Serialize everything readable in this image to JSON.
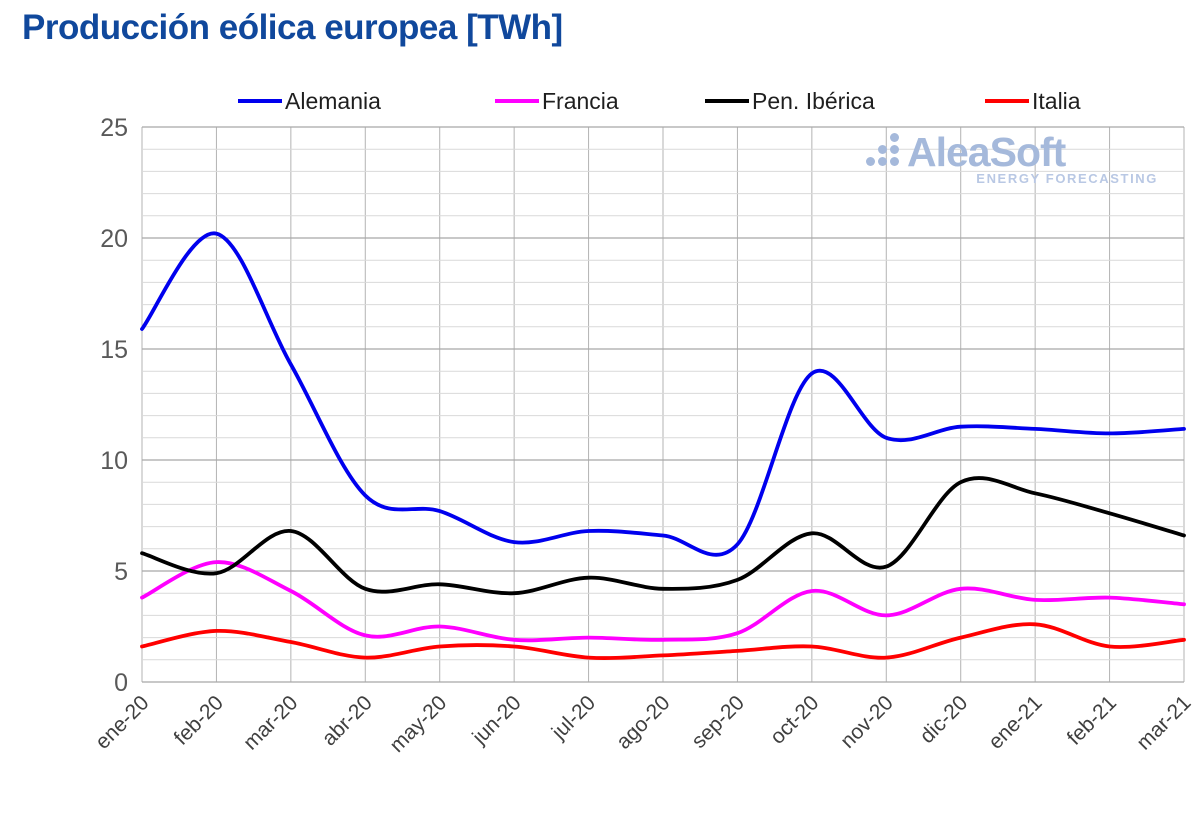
{
  "title": "Producción eólica europea [TWh]",
  "watermark": {
    "brand": "AleaSoft",
    "tagline": "ENERGY FORECASTING",
    "brand_color": "#a5b9db",
    "tagline_color": "#b9c8e4"
  },
  "chart_data": {
    "type": "line",
    "title": "Producción eólica europea [TWh]",
    "unit": "TWh",
    "x_categories": [
      "ene-20",
      "feb-20",
      "mar-20",
      "abr-20",
      "may-20",
      "jun-20",
      "jul-20",
      "ago-20",
      "sep-20",
      "oct-20",
      "nov-20",
      "dic-20",
      "ene-21",
      "feb-21",
      "mar-21"
    ],
    "series": [
      {
        "name": "Alemania",
        "color": "#0000ee",
        "values": [
          15.9,
          20.2,
          14.3,
          8.4,
          7.7,
          6.3,
          6.8,
          6.6,
          6.2,
          13.9,
          11.0,
          11.5,
          11.4,
          11.2,
          11.4
        ]
      },
      {
        "name": "Francia",
        "color": "#ff00ff",
        "values": [
          3.8,
          5.4,
          4.1,
          2.1,
          2.5,
          1.9,
          2.0,
          1.9,
          2.2,
          4.1,
          3.0,
          4.2,
          3.7,
          3.8,
          3.5
        ]
      },
      {
        "name": "Pen. Ibérica",
        "color": "#000000",
        "values": [
          5.8,
          4.9,
          6.8,
          4.2,
          4.4,
          4.0,
          4.7,
          4.2,
          4.6,
          6.7,
          5.2,
          9.0,
          8.5,
          7.6,
          6.6
        ]
      },
      {
        "name": "Italia",
        "color": "#ff0000",
        "values": [
          1.6,
          2.3,
          1.8,
          1.1,
          1.6,
          1.6,
          1.1,
          1.2,
          1.4,
          1.6,
          1.1,
          2.0,
          2.6,
          1.6,
          1.9
        ]
      }
    ],
    "ylim": [
      0,
      25
    ],
    "y_ticks": [
      0,
      5,
      10,
      15,
      20,
      25
    ],
    "y_minor_step": 1,
    "grid": true,
    "legend_position": "top",
    "xlabel": "",
    "ylabel": ""
  },
  "colors": {
    "title": "#10489c",
    "y_tick_labels": "#595959",
    "x_tick_labels": "#3f3f3f",
    "grid_minor": "#d9d9d9",
    "grid_major": "#a8a8a8",
    "grid_vertical": "#b3b3b3",
    "legend_text": "#1f1f1f",
    "background": "#ffffff"
  }
}
